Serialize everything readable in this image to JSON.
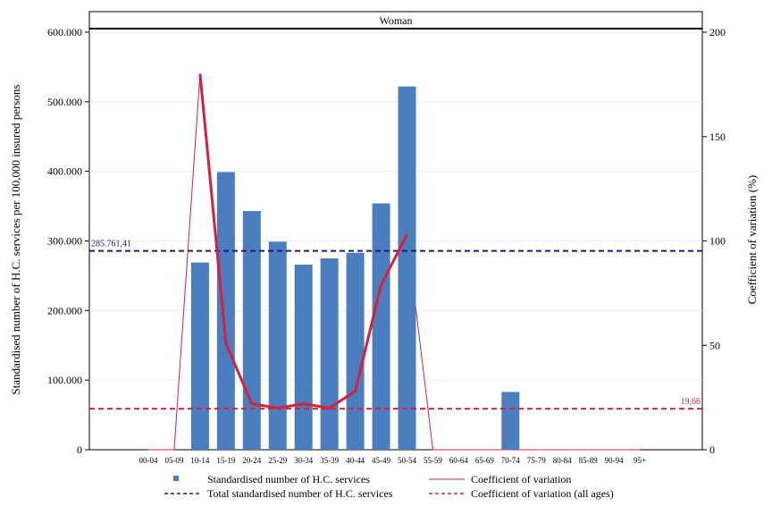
{
  "chart_data": {
    "type": "bar",
    "panel_title": "Woman",
    "categories": [
      "00-04",
      "05-09",
      "10-14",
      "15-19",
      "20-24",
      "25-29",
      "30-34",
      "35-39",
      "40-44",
      "45-49",
      "50-54",
      "55-59",
      "60-64",
      "65-69",
      "70-74",
      "75-79",
      "80-84",
      "85-89",
      "90-94",
      "95+"
    ],
    "series": [
      {
        "name": "Standardised number of H.C. services",
        "kind": "bar",
        "axis": "left",
        "color": "#4a7ebf",
        "values": [
          null,
          null,
          269000,
          399000,
          343000,
          299000,
          266000,
          275000,
          283000,
          354000,
          522000,
          null,
          null,
          null,
          83000,
          null,
          null,
          null,
          null,
          null
        ]
      },
      {
        "name": "Coefficient of variation",
        "kind": "line",
        "axis": "right",
        "color": "#d6203e",
        "values": [
          null,
          null,
          180,
          51,
          22,
          20,
          22,
          20,
          28,
          79,
          103,
          null,
          null,
          null,
          null,
          null,
          null,
          null,
          null,
          null
        ]
      }
    ],
    "background_line": {
      "description_axis": "right",
      "color": "#d6203e",
      "values": [
        0,
        0,
        180,
        51,
        22,
        20,
        22,
        20,
        28,
        79,
        103,
        0,
        0,
        0,
        0,
        0,
        0,
        0,
        0,
        0
      ]
    },
    "reference_lines": [
      {
        "name": "Total standardised number of H.C. services",
        "axis": "left",
        "value": 285761.41,
        "label": "285.761,41",
        "color": "#1a1a80"
      },
      {
        "name": "Coefficient of variation (all ages)",
        "axis": "right",
        "value": 19.66,
        "label": "19,66",
        "color": "#d6203e"
      }
    ],
    "ylabel_left": "Standardised number of H.C. services per 100,000 insured persons",
    "ylabel_right": "Coefficient of variation (%)",
    "ylim_left": [
      0,
      600000
    ],
    "ylim_right": [
      0,
      200
    ],
    "left_ticks": [
      {
        "value": 0,
        "label": "0"
      },
      {
        "value": 100000,
        "label": "100.000"
      },
      {
        "value": 200000,
        "label": "200.000"
      },
      {
        "value": 300000,
        "label": "300.000"
      },
      {
        "value": 400000,
        "label": "400.000"
      },
      {
        "value": 500000,
        "label": "500.000"
      },
      {
        "value": 600000,
        "label": "600.000"
      }
    ],
    "right_ticks": [
      {
        "value": 0,
        "label": "0"
      },
      {
        "value": 50,
        "label": "50"
      },
      {
        "value": 100,
        "label": "100"
      },
      {
        "value": 150,
        "label": "150"
      },
      {
        "value": 200,
        "label": "200"
      }
    ],
    "grid": true,
    "legend_position": "bottom",
    "legend": [
      {
        "label": "Standardised number of H.C. services",
        "symbol": "square",
        "color": "#4a7ebf"
      },
      {
        "label": "Coefficient of variation",
        "symbol": "solid-line",
        "color": "#d6203e"
      },
      {
        "label": "Total standardised number of H.C. services",
        "symbol": "dashed-line",
        "color": "#1a1a80"
      },
      {
        "label": "Coefficient of variation (all ages)",
        "symbol": "dashed-line",
        "color": "#d6203e"
      }
    ]
  }
}
